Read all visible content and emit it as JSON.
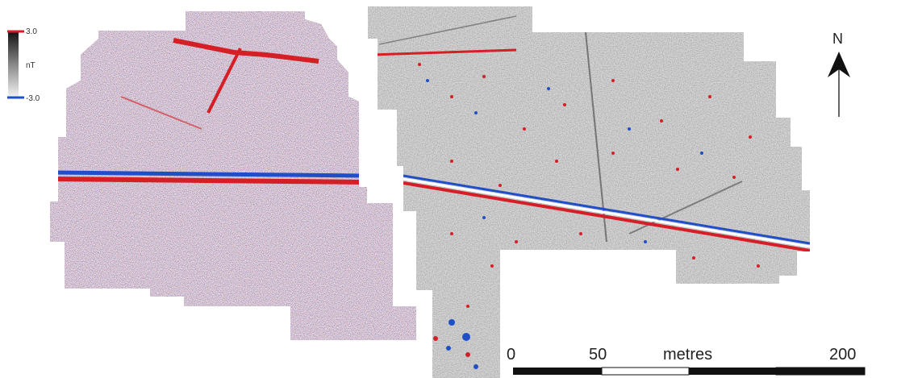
{
  "legend": {
    "max_label": "3.0",
    "unit_label": "nT",
    "min_label": "-3.0",
    "colors": {
      "high": "#d41f26",
      "mid": "#888888",
      "low": "#1f4fc8"
    }
  },
  "north_arrow": {
    "label": "N"
  },
  "scale_bar": {
    "ticks": [
      "0",
      "50",
      "200"
    ],
    "unit_label": "metres"
  },
  "survey": {
    "left_block_tone": "noisy",
    "right_block_tone": "smooth",
    "anomaly_colors": {
      "positive": "#d41f26",
      "negative": "#1f4fc8",
      "background": "#8c8c8c"
    }
  }
}
